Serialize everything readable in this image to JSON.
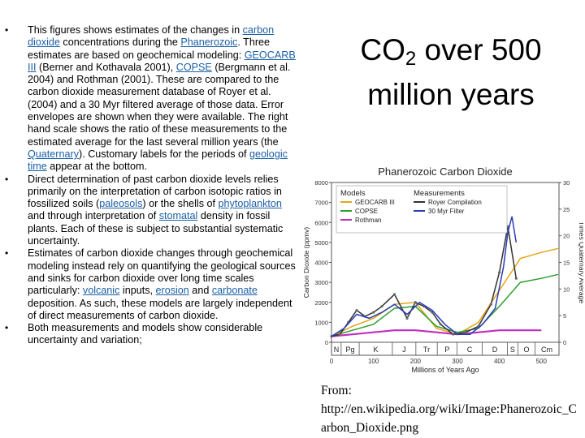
{
  "bullets": [
    {
      "parts": [
        {
          "t": "This figures shows estimates of the changes in "
        },
        {
          "t": "carbon dioxide",
          "link": true
        },
        {
          "t": " concentrations during the "
        },
        {
          "t": "Phanerozoic",
          "link": true
        },
        {
          "t": ". Three estimates are based on geochemical modeling: "
        },
        {
          "t": "GEOCARB III",
          "link": true
        },
        {
          "t": " (Berner and Kothavala 2001), "
        },
        {
          "t": "COPSE",
          "link": true
        },
        {
          "t": " (Bergmann et al. 2004) and Rothman (2001). These are compared to the carbon dioxide measurement database of Royer et al. (2004) and a 30 Myr filtered average of those data. Error envelopes are shown when they were available. The right hand scale shows the ratio of these measurements to the estimated average for the last several million years (the "
        },
        {
          "t": "Quaternary",
          "link": true
        },
        {
          "t": "). Customary labels for the periods of "
        },
        {
          "t": "geologic time",
          "link": true
        },
        {
          "t": " appear at the bottom."
        }
      ]
    },
    {
      "parts": [
        {
          "t": "Direct determination of past carbon dioxide levels relies primarily on the interpretation of carbon isotopic ratios in fossilized soils ("
        },
        {
          "t": "paleosols",
          "link": true
        },
        {
          "t": ") or the shells of "
        },
        {
          "t": "phytoplankton",
          "link": true
        },
        {
          "t": " and through interpretation of "
        },
        {
          "t": "stomatal",
          "link": true
        },
        {
          "t": " density in fossil plants. Each of these is subject to substantial systematic uncertainty."
        }
      ]
    },
    {
      "parts": [
        {
          "t": "Estimates of carbon dioxide changes through geochemical modeling instead rely on quantifying the geological sources and sinks for carbon dioxide over long time scales particularly: "
        },
        {
          "t": "volcanic",
          "link": true
        },
        {
          "t": " inputs, "
        },
        {
          "t": "erosion",
          "link": true
        },
        {
          "t": " and "
        },
        {
          "t": "carbonate",
          "link": true
        },
        {
          "t": " deposition. As such, these models are largely independent of direct measurements of carbon dioxide."
        }
      ]
    },
    {
      "parts": [
        {
          "t": "Both measurements and models show considerable uncertainty and variation;"
        }
      ]
    }
  ],
  "title": {
    "prefix": "CO",
    "sub": "2",
    "suffix": " over 500 million years"
  },
  "source": {
    "label": "From:",
    "url": "http://en.wikipedia.org/wiki/Image:Phanerozoic_Carbon_Dioxide.png"
  },
  "chart_data": {
    "type": "line",
    "title": "Phanerozoic Carbon Dioxide",
    "xlabel": "Millions of Years Ago",
    "ylabel": "Carbon Dioxide (ppmv)",
    "y2label": "Times Quaternary Average",
    "xlim": [
      0,
      542
    ],
    "ylim": [
      0,
      8000
    ],
    "y2lim": [
      0,
      30
    ],
    "x_ticks": [
      0,
      100,
      200,
      300,
      400,
      500
    ],
    "y_ticks": [
      0,
      1000,
      2000,
      3000,
      4000,
      5000,
      6000,
      7000,
      8000
    ],
    "y2_ticks": [
      0,
      5,
      10,
      15,
      20,
      25,
      30
    ],
    "legend_groups": [
      "Models",
      "Measurements"
    ],
    "periods": [
      "N",
      "Pg",
      "K",
      "J",
      "Tr",
      "P",
      "C",
      "D",
      "S",
      "O",
      "Cm"
    ],
    "period_bounds": [
      0,
      23,
      66,
      145,
      201,
      252,
      299,
      359,
      419,
      444,
      485,
      541
    ],
    "series": [
      {
        "name": "GEOCARB III",
        "color": "#e6a614",
        "x": [
          0,
          50,
          100,
          150,
          200,
          250,
          300,
          350,
          400,
          450,
          500,
          540
        ],
        "y": [
          300,
          800,
          1200,
          1900,
          2000,
          700,
          400,
          1000,
          2600,
          4200,
          4500,
          4700
        ]
      },
      {
        "name": "COPSE",
        "color": "#2e9e2e",
        "x": [
          0,
          50,
          100,
          150,
          200,
          250,
          300,
          350,
          400,
          450,
          500,
          540
        ],
        "y": [
          300,
          600,
          900,
          1700,
          1800,
          800,
          500,
          700,
          1800,
          3000,
          3200,
          3400
        ]
      },
      {
        "name": "Rothman",
        "color": "#c02ec0",
        "x": [
          0,
          50,
          100,
          150,
          200,
          250,
          300,
          350,
          400,
          450,
          500
        ],
        "y": [
          300,
          400,
          500,
          600,
          600,
          500,
          400,
          500,
          600,
          600,
          600
        ]
      },
      {
        "name": "Royer Compilation",
        "color": "#333333",
        "x": [
          0,
          20,
          40,
          60,
          80,
          100,
          120,
          150,
          180,
          200,
          220,
          240,
          260,
          290,
          320,
          350,
          380,
          400,
          420,
          440
        ],
        "y": [
          300,
          400,
          1000,
          1600,
          1300,
          1500,
          1800,
          2400,
          1200,
          2000,
          1800,
          1500,
          900,
          400,
          500,
          800,
          1900,
          3500,
          5800,
          3200
        ]
      },
      {
        "name": "30 Myr Filter",
        "color": "#2a3db8",
        "x": [
          0,
          30,
          60,
          90,
          120,
          150,
          180,
          210,
          240,
          270,
          300,
          330,
          360,
          390,
          410,
          420,
          430,
          440
        ],
        "y": [
          300,
          700,
          1400,
          1200,
          1500,
          1900,
          1400,
          2000,
          1600,
          900,
          400,
          400,
          900,
          1700,
          3800,
          5500,
          6300,
          5000
        ]
      }
    ]
  }
}
